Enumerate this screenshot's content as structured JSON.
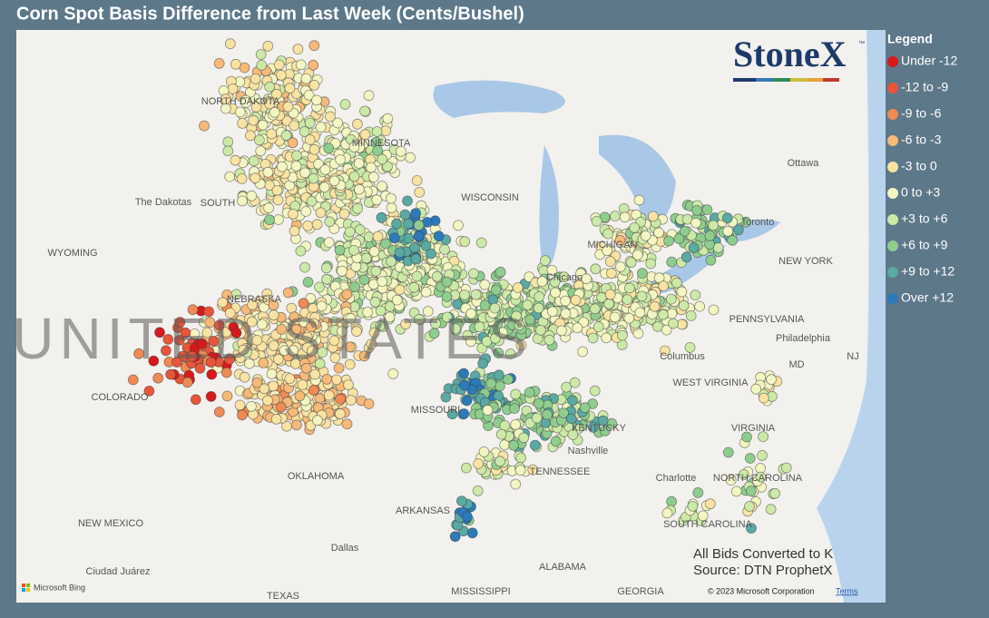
{
  "header": {
    "title": "Corn Spot Basis Difference from Last Week (Cents/Bushel)"
  },
  "logo": {
    "text": "StoneX",
    "mark": "™"
  },
  "legend": {
    "title": "Legend",
    "items": [
      {
        "label": "Under -12",
        "color": "#d7191c"
      },
      {
        "label": "-12 to -9",
        "color": "#e8553a"
      },
      {
        "label": "-9 to -6",
        "color": "#f08a54"
      },
      {
        "label": "-6 to -3",
        "color": "#f5b97a"
      },
      {
        "label": "-3 to 0",
        "color": "#f8e3a3"
      },
      {
        "label": "0 to +3",
        "color": "#f3f5c2"
      },
      {
        "label": "+3 to +6",
        "color": "#cde9a8"
      },
      {
        "label": "+6 to +9",
        "color": "#8fcd8f"
      },
      {
        "label": "+9 to +12",
        "color": "#5aa9a3"
      },
      {
        "label": "Over +12",
        "color": "#2b7bba"
      }
    ]
  },
  "map": {
    "watermark": "UNITED STATES",
    "labels": [
      "NORTH DAKOTA",
      "MINNESOTA",
      "The Dakotas",
      "SOUTH",
      "WYOMING",
      "WISCONSIN",
      "MICHIGAN",
      "Toronto",
      "Ottawa",
      "NEW YORK",
      "Chicago",
      "NEBRASKA",
      "PENNSYLVANIA",
      "Philadelphia",
      "Columbus",
      "COLORADO",
      "MISSOURI",
      "WEST VIRGINIA",
      "KENTUCKY",
      "VIRGINIA",
      "Nashville",
      "TENNESSEE",
      "OKLAHOMA",
      "NORTH CAROLINA",
      "Charlotte",
      "ARKANSAS",
      "NEW MEXICO",
      "SOUTH CAROLINA",
      "Dallas",
      "ALABAMA",
      "Ciudad Juárez",
      "GEORGIA",
      "MISSISSIPPI",
      "TEXAS",
      "MD",
      "NJ"
    ]
  },
  "notes": [
    "All Bids Converted to K",
    "Source: DTN ProphetX"
  ],
  "footer": {
    "brand": "Microsoft Bing",
    "copyright": "© 2023 Microsoft Corporation",
    "terms": "Terms"
  }
}
